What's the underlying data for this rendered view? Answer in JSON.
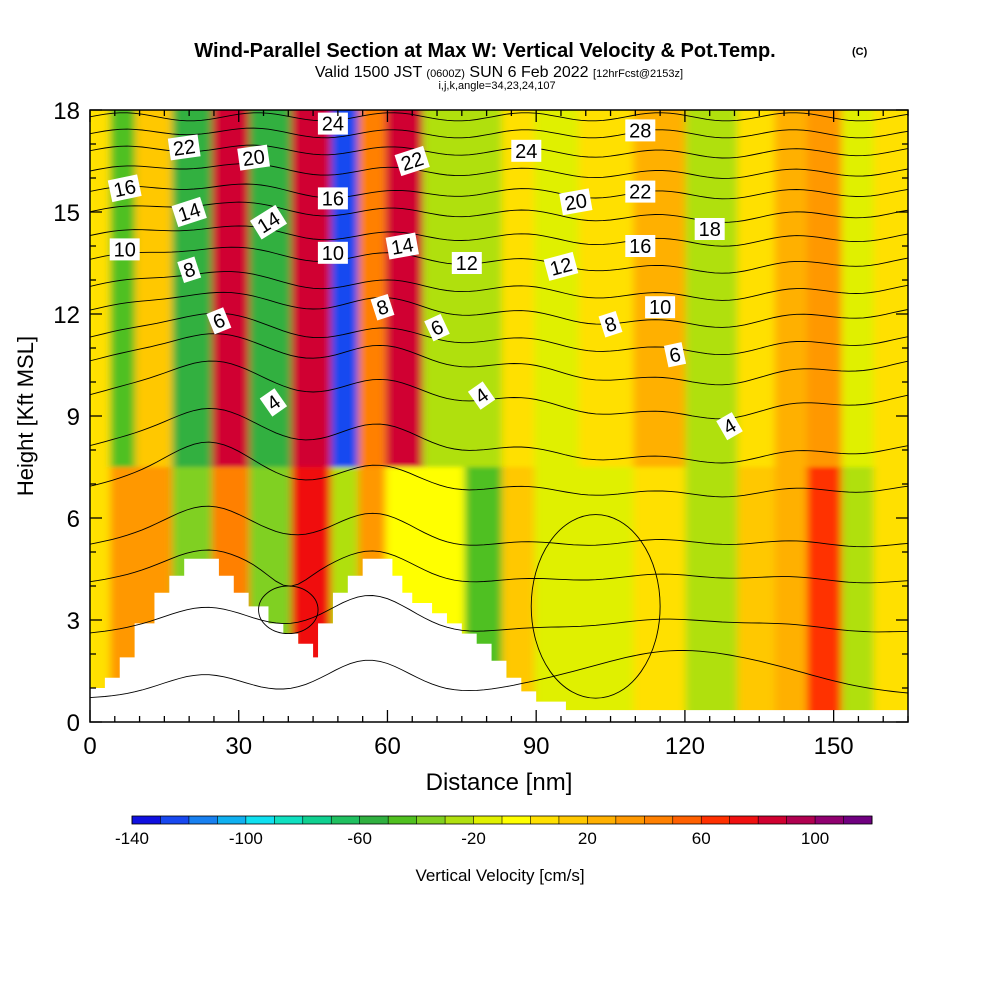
{
  "chart_data": {
    "type": "heatmap",
    "title": "Wind-Parallel Section at Max W: Vertical Velocity & Pot.Temp.",
    "title_mark": "(C)",
    "subtitle": {
      "valid": "Valid 1500 JST",
      "utc": "(0600Z)",
      "date": "SUN 6 Feb 2022",
      "forecast": "[12hrFcst@2153z]"
    },
    "subtitle2": "i,j,k,angle=34,23,24,107",
    "xlabel": "Distance [nm]",
    "ylabel": "Height [Kft MSL]",
    "xlim": [
      0,
      165
    ],
    "ylim": [
      0,
      18
    ],
    "x_ticks": [
      0,
      30,
      60,
      90,
      120,
      150
    ],
    "y_ticks": [
      0,
      3,
      6,
      9,
      12,
      15,
      18
    ],
    "colorbar": {
      "label": "Vertical Velocity [cm/s]",
      "tick_labels": [
        -140,
        -100,
        -60,
        -20,
        20,
        60,
        100
      ],
      "range": [
        -140,
        120
      ],
      "colors": [
        "#1010e0",
        "#1848f0",
        "#1880f0",
        "#10b0f0",
        "#10e0f0",
        "#10e0c0",
        "#10d090",
        "#20c060",
        "#30b040",
        "#50c020",
        "#80d020",
        "#b0e010",
        "#e0f000",
        "#ffff00",
        "#ffe000",
        "#ffc800",
        "#ffb000",
        "#ff9800",
        "#ff8000",
        "#ff6000",
        "#ff3000",
        "#f01010",
        "#d00030",
        "#b00050",
        "#900070",
        "#700080"
      ]
    },
    "velocity_columns": [
      {
        "x": 3,
        "w": 0,
        "wlo": 0
      },
      {
        "x": 6,
        "w": -45,
        "wlo": 30
      },
      {
        "x": 13,
        "w": 15,
        "wlo": 35
      },
      {
        "x": 21,
        "w": -55,
        "wlo": -35
      },
      {
        "x": 29,
        "w": 80,
        "wlo": 40
      },
      {
        "x": 36,
        "w": -60,
        "wlo": -35
      },
      {
        "x": 46,
        "w": 85,
        "wlo": 75
      },
      {
        "x": 52,
        "w": -130,
        "wlo": -25
      },
      {
        "x": 57,
        "w": 40,
        "wlo": 30
      },
      {
        "x": 63,
        "w": 80,
        "wlo": -10
      },
      {
        "x": 72,
        "w": -25,
        "wlo": -5
      },
      {
        "x": 80,
        "w": -30,
        "wlo": -45
      },
      {
        "x": 87,
        "w": 10,
        "wlo": 15
      },
      {
        "x": 93,
        "w": -20,
        "wlo": -20
      },
      {
        "x": 105,
        "w": 0,
        "wlo": -15
      },
      {
        "x": 115,
        "w": 25,
        "wlo": 5
      },
      {
        "x": 126,
        "w": -30,
        "wlo": -25
      },
      {
        "x": 136,
        "w": 10,
        "wlo": 15
      },
      {
        "x": 141,
        "w": 25,
        "wlo": 25
      },
      {
        "x": 149,
        "w": 35,
        "wlo": 60
      },
      {
        "x": 155,
        "w": -15,
        "wlo": -30
      },
      {
        "x": 162,
        "w": 5,
        "wlo": 0
      }
    ],
    "terrain": [
      [
        0,
        1.0
      ],
      [
        3,
        1.0
      ],
      [
        3,
        1.3
      ],
      [
        6,
        1.3
      ],
      [
        6,
        1.9
      ],
      [
        9,
        1.9
      ],
      [
        9,
        2.9
      ],
      [
        13,
        2.9
      ],
      [
        13,
        3.8
      ],
      [
        16,
        3.8
      ],
      [
        16,
        4.3
      ],
      [
        19,
        4.3
      ],
      [
        19,
        4.8
      ],
      [
        26,
        4.8
      ],
      [
        26,
        4.3
      ],
      [
        29,
        4.3
      ],
      [
        29,
        3.8
      ],
      [
        32,
        3.8
      ],
      [
        32,
        3.4
      ],
      [
        36,
        3.4
      ],
      [
        36,
        2.9
      ],
      [
        39,
        2.9
      ],
      [
        39,
        2.6
      ],
      [
        42,
        2.6
      ],
      [
        42,
        2.3
      ],
      [
        45,
        2.3
      ],
      [
        45,
        1.9
      ],
      [
        46,
        1.9
      ],
      [
        46,
        2.9
      ],
      [
        49,
        2.9
      ],
      [
        49,
        3.8
      ],
      [
        52,
        3.8
      ],
      [
        52,
        4.3
      ],
      [
        55,
        4.3
      ],
      [
        55,
        4.8
      ],
      [
        61,
        4.8
      ],
      [
        61,
        4.3
      ],
      [
        63,
        4.3
      ],
      [
        63,
        3.8
      ],
      [
        65,
        3.8
      ],
      [
        65,
        3.5
      ],
      [
        69,
        3.5
      ],
      [
        69,
        3.2
      ],
      [
        72,
        3.2
      ],
      [
        72,
        2.9
      ],
      [
        75,
        2.9
      ],
      [
        75,
        2.6
      ],
      [
        78,
        2.6
      ],
      [
        78,
        2.3
      ],
      [
        81,
        2.3
      ],
      [
        81,
        1.8
      ],
      [
        84,
        1.8
      ],
      [
        84,
        1.3
      ],
      [
        87,
        1.3
      ],
      [
        87,
        0.9
      ],
      [
        90,
        0.9
      ],
      [
        90,
        0.6
      ],
      [
        96,
        0.6
      ],
      [
        96,
        0.35
      ],
      [
        165,
        0.35
      ]
    ],
    "theta_contours": [
      {
        "y0": 0.7,
        "dy": [
          0.7,
          1.1,
          1.4
        ]
      },
      {
        "y0": 2.6,
        "dy": [
          0.8,
          1.1,
          0.4
        ]
      },
      {
        "y0": 4.1,
        "dy": [
          1.0,
          0.9,
          0.2
        ],
        "dip": 0.4
      },
      {
        "y0": 5.2,
        "dy": [
          1.2,
          0.9,
          0.1
        ]
      },
      {
        "y0": 6.9,
        "dy": [
          1.4,
          0.6,
          -0.2
        ]
      },
      {
        "y0": 8.1,
        "dy": [
          1.2,
          0.6,
          -0.4
        ]
      },
      {
        "y0": 9.6,
        "dy": [
          1.1,
          0.4,
          -0.6
        ]
      },
      {
        "y0": 10.6,
        "dy": [
          0.9,
          0.4,
          -0.6
        ]
      },
      {
        "y0": 11.3,
        "dy": [
          0.8,
          0.2,
          -0.4
        ]
      },
      {
        "y0": 12.1,
        "dy": [
          0.6,
          0.3,
          -0.4
        ]
      },
      {
        "y0": 12.8,
        "dy": [
          0.5,
          0.1,
          -0.3
        ]
      },
      {
        "y0": 13.6,
        "dy": [
          0.4,
          0.1,
          -0.3
        ]
      },
      {
        "y0": 14.3,
        "dy": [
          0.3,
          0.0,
          -0.2
        ]
      },
      {
        "y0": 15.0,
        "dy": [
          0.3,
          0.0,
          -0.2
        ]
      },
      {
        "y0": 15.6,
        "dy": [
          0.2,
          -0.1,
          -0.1
        ]
      },
      {
        "y0": 16.2,
        "dy": [
          0.2,
          0.0,
          -0.1
        ]
      },
      {
        "y0": 16.8,
        "dy": [
          0.1,
          0.0,
          -0.1
        ]
      },
      {
        "y0": 17.3,
        "dy": [
          0.1,
          0.0,
          0.0
        ]
      },
      {
        "y0": 17.8,
        "dy": [
          0.0,
          0.0,
          0.0
        ]
      }
    ],
    "closed_contours": [
      {
        "cx": 102,
        "cy": 3.4,
        "rx": 13,
        "ry": 2.7
      },
      {
        "cx": 40,
        "cy": 3.3,
        "rx": 6,
        "ry": 0.7
      }
    ],
    "contour_labels": [
      {
        "text": "22",
        "x": 19,
        "y": 16.9,
        "rot": -8
      },
      {
        "text": "20",
        "x": 33,
        "y": 16.6,
        "rot": -8
      },
      {
        "text": "24",
        "x": 49,
        "y": 17.6,
        "rot": 0
      },
      {
        "text": "22",
        "x": 65,
        "y": 16.5,
        "rot": -18
      },
      {
        "text": "24",
        "x": 88,
        "y": 16.8,
        "rot": 0
      },
      {
        "text": "28",
        "x": 111,
        "y": 17.4,
        "rot": 0
      },
      {
        "text": "16",
        "x": 7,
        "y": 15.7,
        "rot": -12
      },
      {
        "text": "14",
        "x": 20,
        "y": 15.0,
        "rot": -18
      },
      {
        "text": "14",
        "x": 36,
        "y": 14.7,
        "rot": -32
      },
      {
        "text": "16",
        "x": 49,
        "y": 15.4,
        "rot": 0
      },
      {
        "text": "20",
        "x": 98,
        "y": 15.3,
        "rot": -10
      },
      {
        "text": "22",
        "x": 111,
        "y": 15.6,
        "rot": 0
      },
      {
        "text": "10",
        "x": 7,
        "y": 13.9,
        "rot": 0
      },
      {
        "text": "10",
        "x": 49,
        "y": 13.8,
        "rot": 0
      },
      {
        "text": "14",
        "x": 63,
        "y": 14.0,
        "rot": -10
      },
      {
        "text": "12",
        "x": 76,
        "y": 13.5,
        "rot": 0
      },
      {
        "text": "12",
        "x": 95,
        "y": 13.4,
        "rot": -15
      },
      {
        "text": "16",
        "x": 111,
        "y": 14.0,
        "rot": 0
      },
      {
        "text": "18",
        "x": 125,
        "y": 14.5,
        "rot": 0
      },
      {
        "text": "8",
        "x": 20,
        "y": 13.3,
        "rot": -18
      },
      {
        "text": "8",
        "x": 59,
        "y": 12.2,
        "rot": -18
      },
      {
        "text": "6",
        "x": 26,
        "y": 11.8,
        "rot": -22
      },
      {
        "text": "6",
        "x": 70,
        "y": 11.6,
        "rot": -25
      },
      {
        "text": "8",
        "x": 105,
        "y": 11.7,
        "rot": -18
      },
      {
        "text": "10",
        "x": 115,
        "y": 12.2,
        "rot": 0
      },
      {
        "text": "6",
        "x": 118,
        "y": 10.8,
        "rot": -12
      },
      {
        "text": "4",
        "x": 37,
        "y": 9.4,
        "rot": -35
      },
      {
        "text": "4",
        "x": 79,
        "y": 9.6,
        "rot": -35
      },
      {
        "text": "4",
        "x": 129,
        "y": 8.7,
        "rot": -30
      }
    ]
  }
}
